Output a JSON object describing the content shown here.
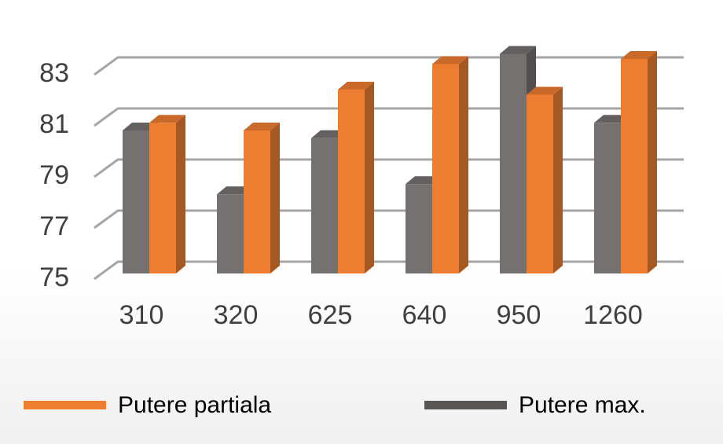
{
  "chart_data": {
    "type": "bar3d",
    "categories": [
      "310",
      "320",
      "625",
      "640",
      "950",
      "1260"
    ],
    "series": [
      {
        "name": "Putere partiala",
        "color": "#ed7d31",
        "values": [
          80.9,
          80.6,
          82.2,
          83.2,
          82.0,
          83.4
        ]
      },
      {
        "name": "Putere max.",
        "color": "#767171",
        "values": [
          80.6,
          78.1,
          80.3,
          78.5,
          83.6,
          80.9
        ]
      }
    ],
    "ylim": [
      75,
      84
    ],
    "yticks": [
      75,
      77,
      79,
      81,
      83
    ],
    "grid": true
  }
}
